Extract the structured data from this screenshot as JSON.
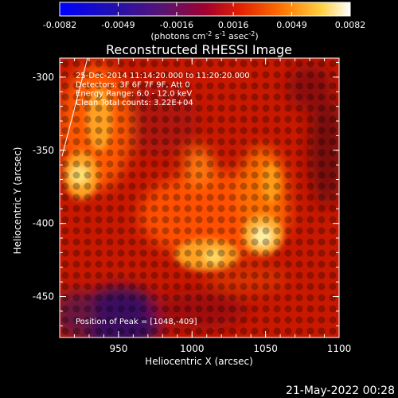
{
  "colorbar": {
    "tick_labels": [
      "-0.0082",
      "-0.0049",
      "-0.0016",
      "0.0016",
      "0.0049",
      "0.0082"
    ],
    "unit_label_prefix": "(photons cm",
    "unit_exp1": "-2",
    "unit_mid1": " s",
    "unit_exp2": "-1",
    "unit_mid2": " asec",
    "unit_exp3": "-2",
    "unit_suffix": ")",
    "range": [
      -0.0082,
      0.0082
    ]
  },
  "image": {
    "title": "Reconstructed RHESSI Image",
    "annotations": [
      "25-Dec-2014 11:14:20.000 to 11:20:20.000",
      "Detectors: 3F 6F 7F 9F, Att 0",
      "Energy Range: 6.0 - 12.0 keV",
      "Clean     Total counts: 3.22E+04"
    ],
    "peak_label": "Position of Peak = [1048,-409]",
    "xlabel": "Heliocentric X (arcsec)",
    "ylabel": "Heliocentric Y (arcsec)",
    "x_ticks": [
      "950",
      "1000",
      "1050",
      "1100"
    ],
    "y_ticks": [
      "-300",
      "-350",
      "-400",
      "-450"
    ],
    "xlim": [
      910,
      1100
    ],
    "ylim": [
      -478,
      -287
    ],
    "colormap": "hot",
    "peak_position": [
      1048,
      -409
    ]
  },
  "footer": {
    "date": "21-May-2022 00:28"
  }
}
